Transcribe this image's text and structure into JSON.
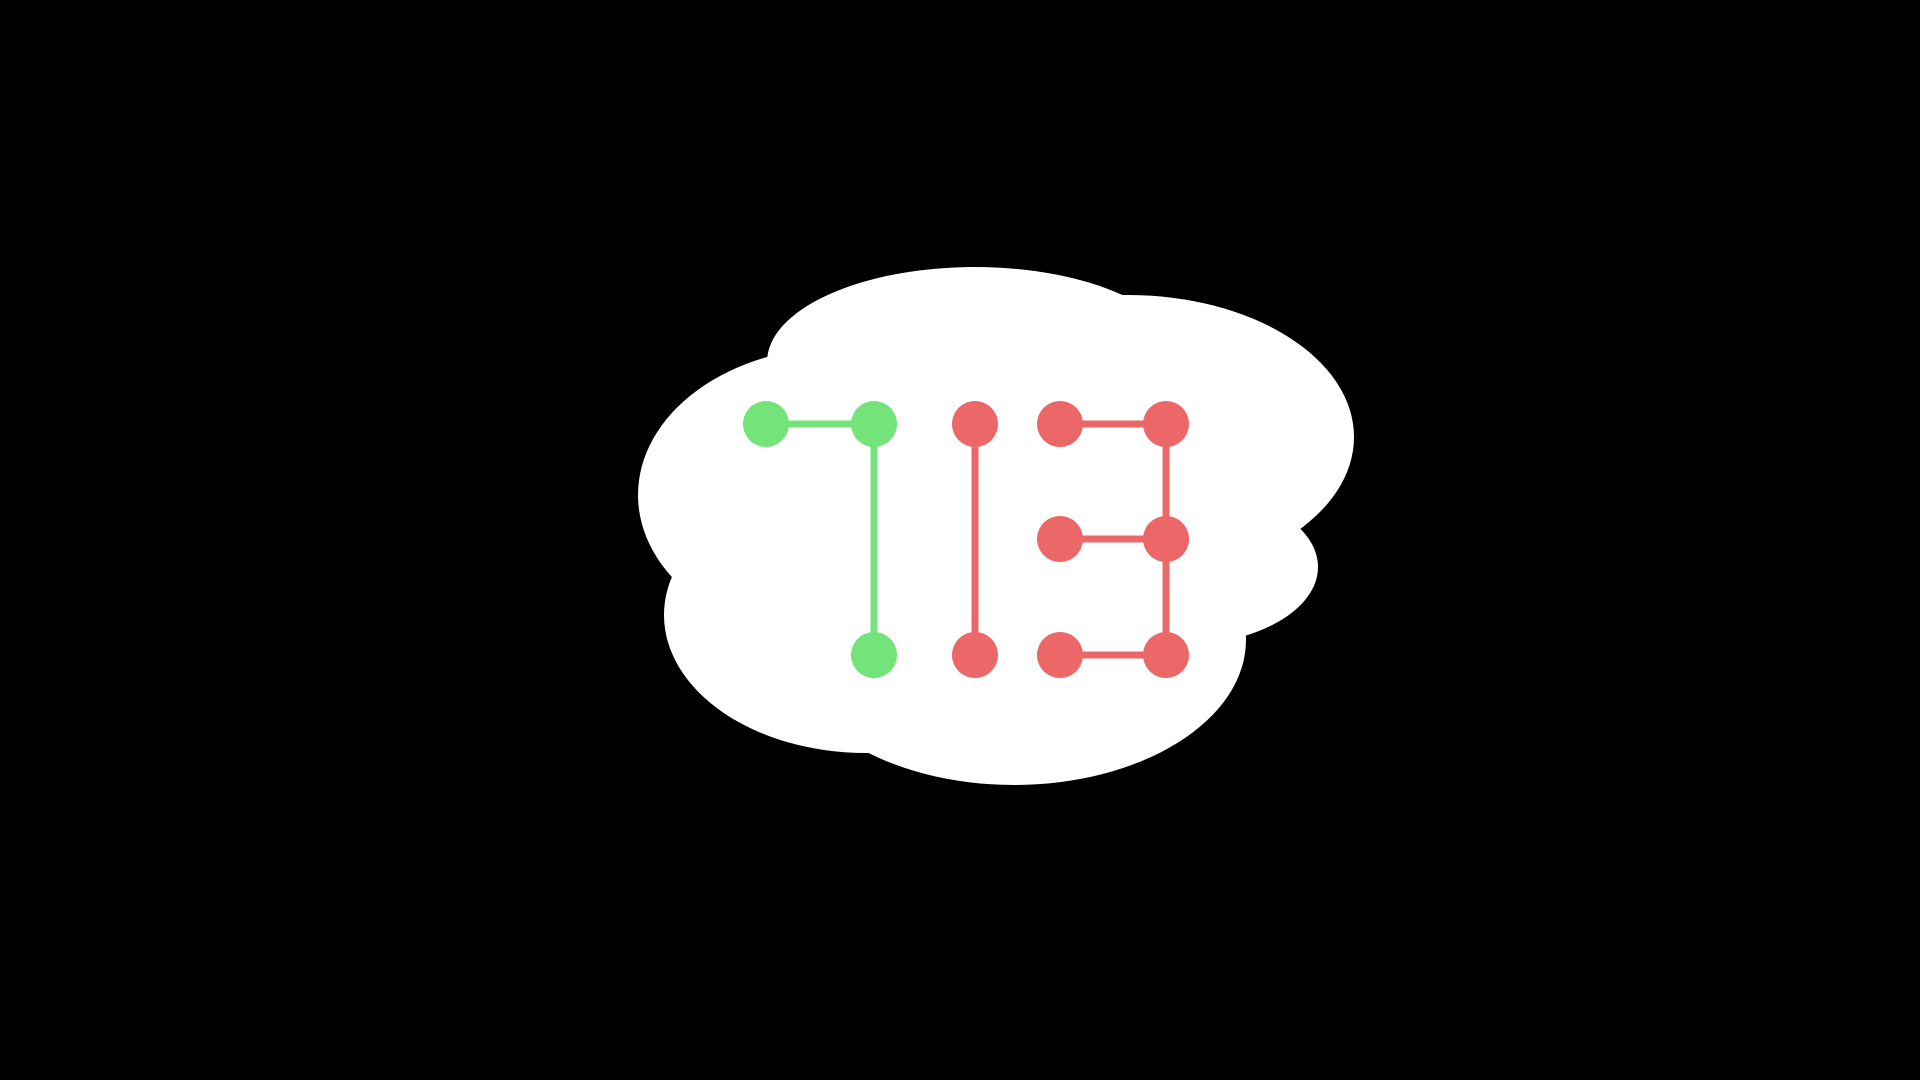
{
  "scene": {
    "background_color": "#000000",
    "cloud_color": "#ffffff"
  },
  "number": {
    "value": 713,
    "digits": [
      {
        "digit": "7",
        "color": "#74e47a"
      },
      {
        "digit": "1",
        "color": "#ec6767"
      },
      {
        "digit": "3",
        "color": "#ec6767"
      }
    ]
  }
}
